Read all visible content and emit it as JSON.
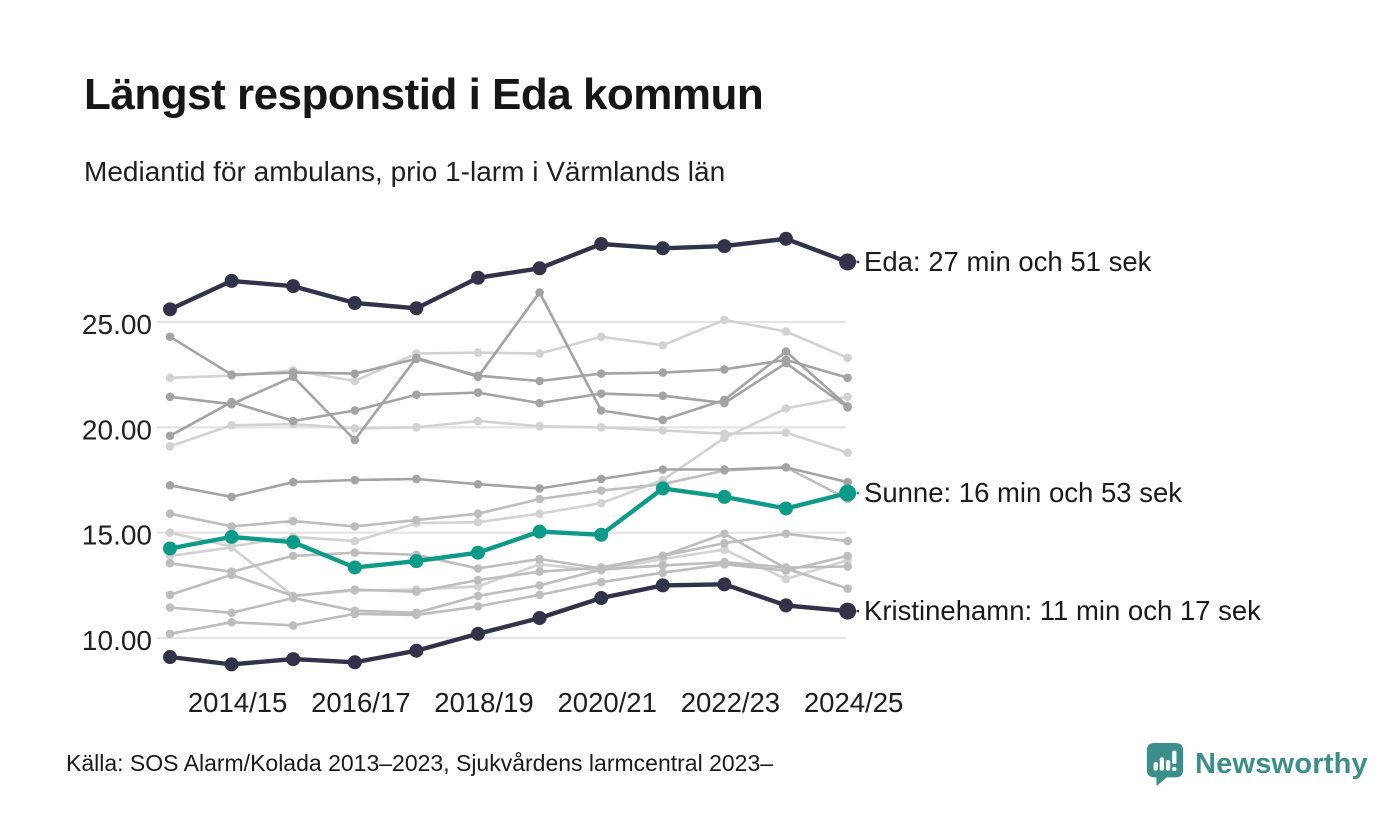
{
  "header": {
    "title": "Längst responstid i Eda kommun",
    "subtitle": "Mediantid för ambulans, prio 1-larm i Värmlands län"
  },
  "source": "Källa: SOS Alarm/Kolada 2013–2023, Sjukvårdens larmcentral 2023–",
  "logo": {
    "brand": "Newsworthy",
    "icon": "speech-bubble-bar-chart-icon",
    "color": "#3b8e8a"
  },
  "chart_data": {
    "type": "line",
    "title": "Längst responstid i Eda kommun",
    "subtitle": "Mediantid för ambulans, prio 1-larm i Värmlands län",
    "unit": "minuter",
    "x": [
      "2013/14",
      "2014/15",
      "2015/16",
      "2016/17",
      "2017/18",
      "2018/19",
      "2019/20",
      "2020/21",
      "2021/22",
      "2022/23",
      "2023/24",
      "2024/25"
    ],
    "x_tick_labels": [
      "2014/15",
      "2016/17",
      "2018/19",
      "2020/21",
      "2022/23",
      "2024/25"
    ],
    "x_tick_indices": [
      1,
      3,
      5,
      7,
      9,
      11
    ],
    "y_ticks": [
      25,
      20,
      15,
      10
    ],
    "y_tick_labels": [
      "25.00",
      "20.00",
      "15.00",
      "10.00"
    ],
    "ylim": [
      8.2,
      29.8
    ],
    "grid": "horizontal-only",
    "legend": "direct-labels-right",
    "palette": {
      "highlight_dark": "#32324a",
      "highlight_teal": "#0d9b89",
      "gray_med": "#a3a3a3",
      "gray_light": "#bdbdbd",
      "gray_xlight": "#d2d2d2",
      "gridline": "#e4e4e4",
      "annotation_text": "#1a1a1a"
    },
    "series": [
      {
        "id": "bg-1",
        "role": "background",
        "shade": "med",
        "values": [
          24.3,
          22.5,
          22.6,
          22.55,
          23.25,
          22.45,
          22.2,
          22.55,
          22.6,
          22.75,
          23.2,
          22.35
        ]
      },
      {
        "id": "bg-2",
        "role": "background",
        "shade": "med",
        "values": [
          21.45,
          21.1,
          22.4,
          19.4,
          23.3,
          22.4,
          26.4,
          20.8,
          20.35,
          21.3,
          23.6,
          21.0
        ]
      },
      {
        "id": "bg-3",
        "role": "background",
        "shade": "med",
        "values": [
          19.6,
          21.2,
          20.3,
          20.8,
          21.55,
          21.65,
          21.15,
          21.6,
          21.5,
          21.15,
          23.05,
          20.95
        ]
      },
      {
        "id": "bg-4",
        "role": "background",
        "shade": "xlight",
        "values": [
          22.35,
          22.45,
          22.7,
          22.2,
          23.5,
          23.55,
          23.5,
          24.3,
          23.9,
          25.1,
          24.55,
          23.3
        ]
      },
      {
        "id": "bg-5",
        "role": "background",
        "shade": "xlight",
        "values": [
          19.1,
          20.1,
          20.15,
          19.95,
          20.0,
          20.3,
          20.05,
          20.0,
          19.85,
          19.7,
          19.75,
          18.8
        ]
      },
      {
        "id": "bg-6",
        "role": "background",
        "shade": "med",
        "values": [
          17.25,
          16.7,
          17.4,
          17.5,
          17.55,
          17.3,
          17.1,
          17.55,
          18.0,
          18.0,
          18.1,
          17.4
        ]
      },
      {
        "id": "bg-7",
        "role": "background",
        "shade": "light",
        "values": [
          15.9,
          15.3,
          15.55,
          15.3,
          15.6,
          15.9,
          16.6,
          17.0,
          17.3,
          17.95,
          18.1,
          16.6
        ]
      },
      {
        "id": "bg-8",
        "role": "background",
        "shade": "xlight",
        "values": [
          15.0,
          14.35,
          14.8,
          14.6,
          15.45,
          15.5,
          15.9,
          16.4,
          17.5,
          19.5,
          20.9,
          21.45
        ]
      },
      {
        "id": "bg-9",
        "role": "background",
        "shade": "light",
        "values": [
          13.55,
          13.15,
          13.9,
          14.05,
          13.95,
          13.3,
          13.75,
          13.3,
          13.9,
          14.95,
          13.3,
          12.35
        ]
      },
      {
        "id": "bg-10",
        "role": "background",
        "shade": "light",
        "values": [
          12.05,
          13.0,
          12.0,
          12.3,
          12.2,
          12.75,
          13.15,
          13.35,
          13.9,
          14.5,
          14.95,
          14.6
        ]
      },
      {
        "id": "bg-11",
        "role": "background",
        "shade": "light",
        "values": [
          11.45,
          11.2,
          11.9,
          11.3,
          11.2,
          12.0,
          12.5,
          13.25,
          13.45,
          13.6,
          13.35,
          13.4
        ]
      },
      {
        "id": "bg-12",
        "role": "background",
        "shade": "light",
        "values": [
          10.2,
          10.75,
          10.6,
          11.15,
          11.1,
          11.5,
          12.05,
          12.65,
          13.1,
          13.5,
          13.2,
          13.9
        ]
      },
      {
        "id": "bg-13",
        "role": "background",
        "shade": "xlight",
        "values": [
          13.9,
          14.3,
          12.0,
          12.25,
          12.3,
          12.45,
          13.5,
          13.2,
          13.75,
          14.2,
          12.8,
          13.7
        ]
      },
      {
        "id": "eda",
        "name": "Eda",
        "role": "highlight",
        "color": "dark",
        "label": "Eda: 27 min och 51 sek",
        "end_value": "27 min och 51 sek",
        "values": [
          25.6,
          26.95,
          26.7,
          25.9,
          25.65,
          27.1,
          27.55,
          28.7,
          28.5,
          28.6,
          28.95,
          27.85
        ]
      },
      {
        "id": "sunne",
        "name": "Sunne",
        "role": "highlight",
        "color": "teal",
        "label": "Sunne: 16 min och 53 sek",
        "end_value": "16 min och 53 sek",
        "values": [
          14.25,
          14.8,
          14.55,
          13.35,
          13.65,
          14.05,
          15.05,
          14.9,
          17.1,
          16.7,
          16.15,
          16.88
        ]
      },
      {
        "id": "kristinehamn",
        "name": "Kristinehamn",
        "role": "highlight",
        "color": "dark",
        "label": "Kristinehamn: 11 min och 17 sek",
        "end_value": "11 min och 17 sek",
        "values": [
          9.1,
          8.75,
          9.0,
          8.85,
          9.4,
          10.2,
          10.95,
          11.9,
          12.5,
          12.55,
          11.55,
          11.28
        ]
      }
    ]
  }
}
